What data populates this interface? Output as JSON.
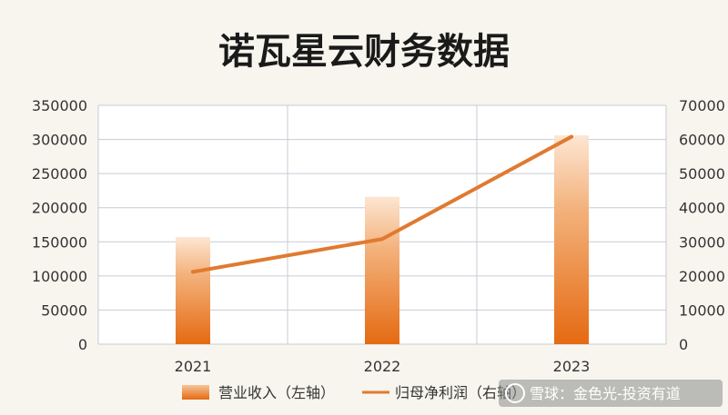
{
  "chart_data": {
    "type": "bar",
    "title": "诺瓦星云财务数据",
    "categories": [
      "2021",
      "2022",
      "2023"
    ],
    "series": [
      {
        "name": "营业收入（左轴）",
        "kind": "bar",
        "axis": "left",
        "color": "#e8731e",
        "values": [
          157000,
          216000,
          306000
        ]
      },
      {
        "name": "归母净利润（右轴）",
        "kind": "line",
        "axis": "right",
        "color": "#e07a30",
        "values": [
          21200,
          30800,
          60800
        ]
      }
    ],
    "y_left": {
      "min": 0,
      "max": 350000,
      "ticks": [
        "0",
        "50000",
        "100000",
        "150000",
        "200000",
        "250000",
        "300000",
        "350000"
      ]
    },
    "y_right": {
      "min": 0,
      "max": 70000,
      "ticks": [
        "0",
        "10000",
        "20000",
        "30000",
        "40000",
        "50000",
        "60000",
        "70000"
      ]
    },
    "grid": true,
    "legend": "bottom"
  },
  "watermark": "雪球：金色光-投资有道",
  "colors": {
    "background": "#f7f5ee",
    "plot": "#ffffff",
    "grid": "#c9cbd6",
    "bar_top": "#fbe3cf",
    "bar_bottom": "#e8731e",
    "line": "#e07a30"
  }
}
